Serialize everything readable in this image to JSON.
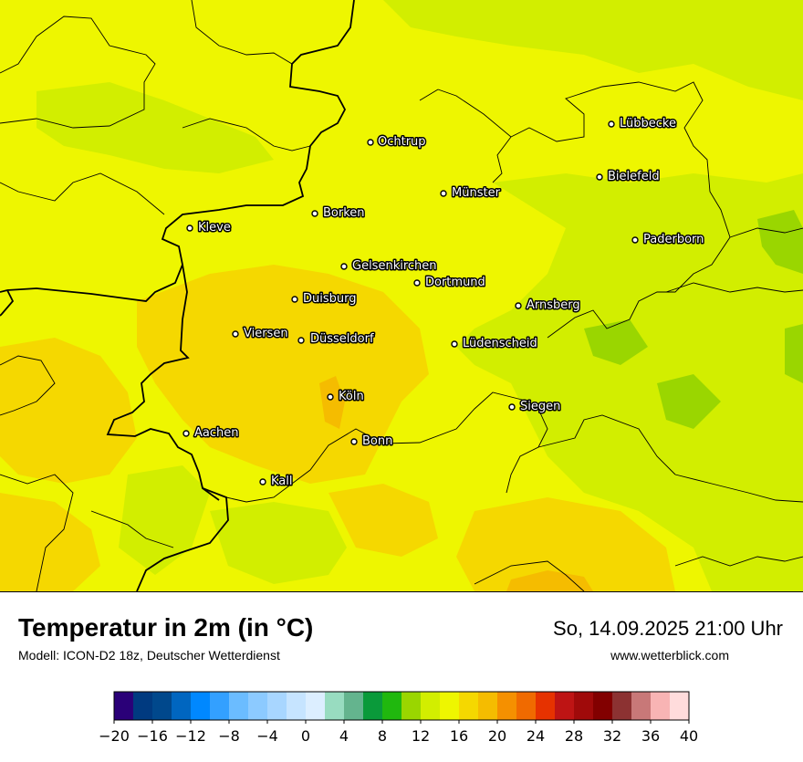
{
  "title": "Temperatur in 2m (in °C)",
  "model": "Modell: ICON-D2 18z, Deutscher Wetterdienst",
  "datetime": "So, 14.09.2025 21:00 Uhr",
  "website": "www.wetterblick.com",
  "colors": {
    "land_base": "#eef600",
    "warmer_zone": "#f5d800",
    "cooler_zone": "#d2ee00",
    "border": "#000000"
  },
  "cities": [
    {
      "name": "Ochtrup"
    },
    {
      "name": "Lübbecke"
    },
    {
      "name": "Bielefeld"
    },
    {
      "name": "Münster"
    },
    {
      "name": "Borken"
    },
    {
      "name": "Kleve"
    },
    {
      "name": "Paderborn"
    },
    {
      "name": "Gelsenkirchen"
    },
    {
      "name": "Dortmund"
    },
    {
      "name": "Duisburg"
    },
    {
      "name": "Arnsberg"
    },
    {
      "name": "Viersen"
    },
    {
      "name": "Düsseldorf"
    },
    {
      "name": "Lüdenscheid"
    },
    {
      "name": "Köln"
    },
    {
      "name": "Siegen"
    },
    {
      "name": "Aachen"
    },
    {
      "name": "Bonn"
    },
    {
      "name": "Kall"
    }
  ],
  "legend": {
    "colors": [
      "#2a0078",
      "#003a80",
      "#00488c",
      "#0066c0",
      "#0088ff",
      "#33a0ff",
      "#6bbcff",
      "#8ccaff",
      "#a8d6ff",
      "#c6e4ff",
      "#dceeff",
      "#98dcc0",
      "#64b48e",
      "#0a9a3a",
      "#20b80e",
      "#9ad600",
      "#d2ee00",
      "#eef600",
      "#f5d800",
      "#f5bc00",
      "#f59000",
      "#f06a00",
      "#e63200",
      "#be1414",
      "#a00a0a",
      "#820000",
      "#8c3232",
      "#c87878",
      "#f8b4b4",
      "#ffdcdc"
    ],
    "ticks": [
      "−20",
      "−16",
      "−12",
      "−8",
      "−4",
      "0",
      "4",
      "8",
      "12",
      "16",
      "20",
      "24",
      "28",
      "32",
      "36",
      "40"
    ]
  }
}
